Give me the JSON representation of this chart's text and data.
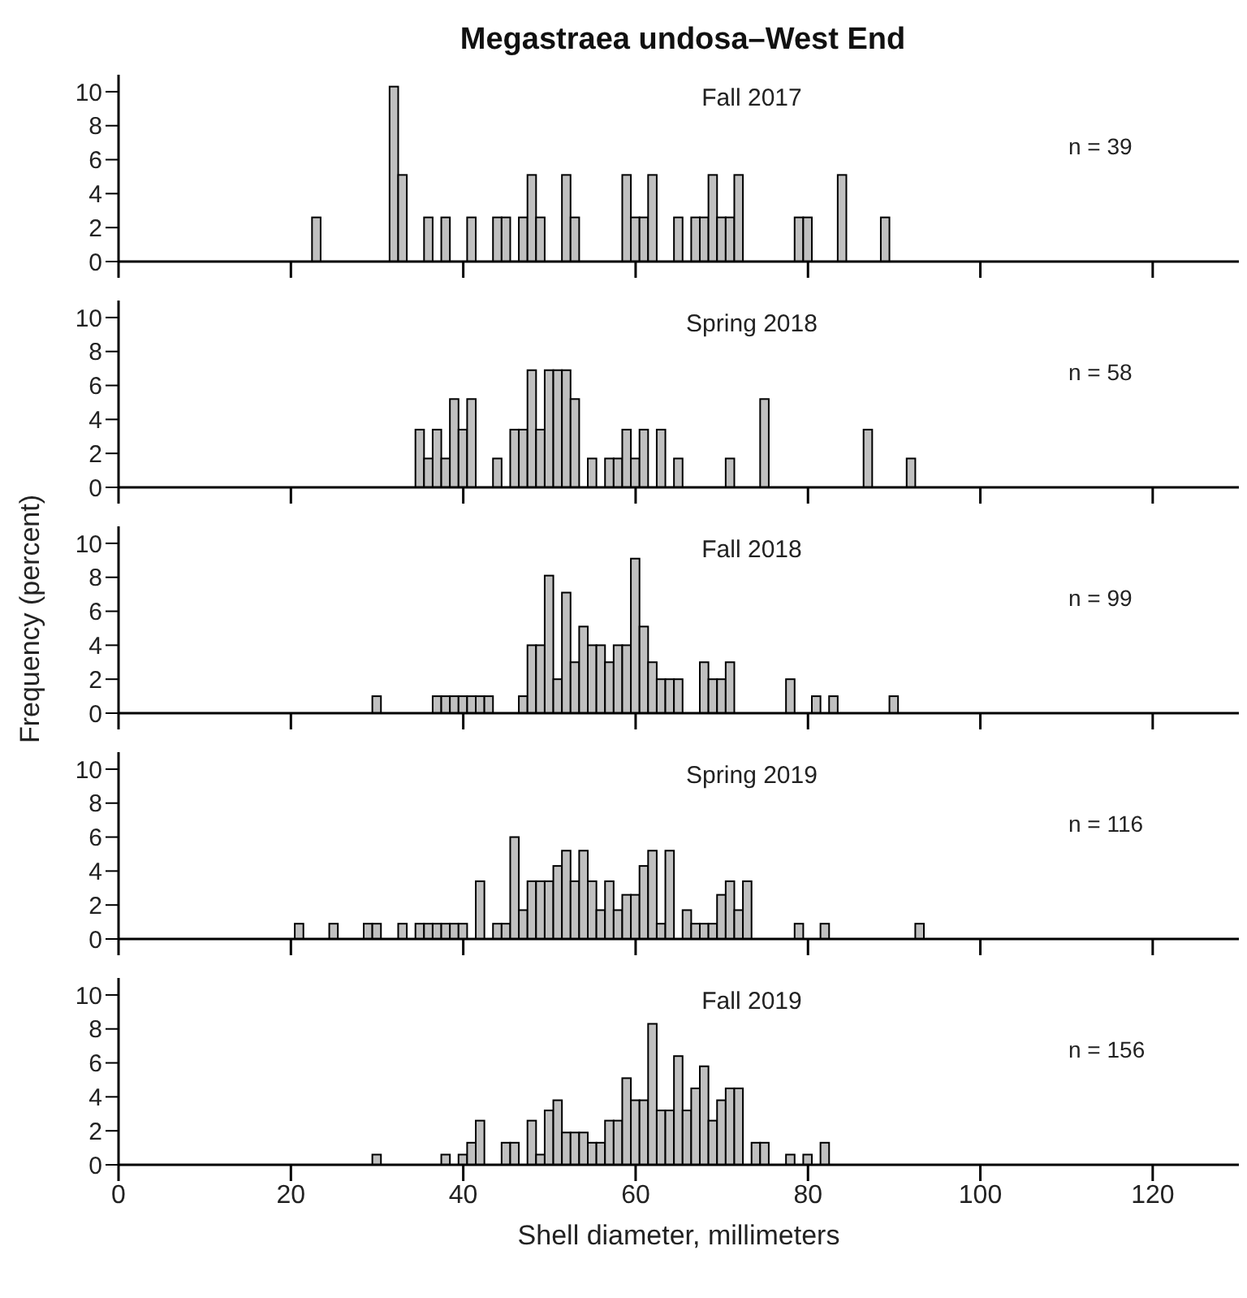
{
  "chart_data": [
    {
      "type": "histogram",
      "title": "Megastraea undosa–West End",
      "annotations": [
        "Fall 2017",
        "n = 39"
      ],
      "color": "#c0c0c0",
      "xlim": [
        0,
        130
      ],
      "xticks": [
        0,
        20,
        40,
        60,
        80,
        100,
        120
      ],
      "ylim": [
        0,
        11
      ],
      "yticks": [
        0,
        2,
        4,
        6,
        8,
        10
      ],
      "tick_labels": "y",
      "bins": [
        20.5,
        21.5,
        22.5,
        23.5,
        24.5,
        25.5,
        26.5,
        27.5,
        28.5,
        29.5,
        30.5,
        31.5,
        32.5,
        33.5,
        34.5,
        35.5,
        36.5,
        37.5,
        38.5,
        39.5,
        40.5,
        41.5,
        42.5,
        43.5,
        44.5,
        45.5,
        46.5,
        47.5,
        48.5,
        49.5,
        50.5,
        51.5,
        52.5,
        53.5,
        54.5,
        55.5,
        56.5,
        57.5,
        58.5,
        59.5,
        60.5,
        61.5,
        62.5,
        63.5,
        64.5,
        65.5,
        66.5,
        67.5,
        68.5,
        69.5,
        70.5,
        71.5,
        72.5,
        73.5,
        74.5,
        75.5,
        76.5,
        77.5,
        78.5,
        79.5,
        80.5,
        81.5,
        82.5,
        83.5,
        84.5,
        85.5,
        86.5,
        87.5,
        88.5,
        89.5,
        90.5,
        91.5,
        92.5,
        93.5
      ],
      "values": [
        0,
        0,
        2.6,
        0,
        0,
        0,
        0,
        0,
        0,
        0,
        0,
        10.3,
        5.1,
        0,
        0,
        2.6,
        0,
        2.6,
        0,
        0,
        2.6,
        0,
        0,
        2.6,
        2.6,
        0,
        2.6,
        5.1,
        2.6,
        0,
        0,
        5.1,
        2.6,
        0,
        0,
        0,
        0,
        0,
        5.1,
        2.6,
        2.6,
        5.1,
        0,
        0,
        2.6,
        0,
        2.6,
        2.6,
        5.1,
        2.6,
        2.6,
        5.1,
        0,
        0,
        0,
        0,
        0,
        0,
        2.6,
        2.6,
        0,
        0,
        0,
        5.1,
        0,
        0,
        0,
        0,
        2.6,
        0,
        0,
        0,
        0
      ]
    },
    {
      "type": "histogram",
      "annotations": [
        "Spring 2018",
        "n = 58"
      ],
      "color": "#c0c0c0",
      "xlim": [
        0,
        130
      ],
      "xticks": [
        0,
        20,
        40,
        60,
        80,
        100,
        120
      ],
      "ylim": [
        0,
        11
      ],
      "yticks": [
        0,
        2,
        4,
        6,
        8,
        10
      ],
      "tick_labels": "y",
      "bins": [
        20.5,
        21.5,
        22.5,
        23.5,
        24.5,
        25.5,
        26.5,
        27.5,
        28.5,
        29.5,
        30.5,
        31.5,
        32.5,
        33.5,
        34.5,
        35.5,
        36.5,
        37.5,
        38.5,
        39.5,
        40.5,
        41.5,
        42.5,
        43.5,
        44.5,
        45.5,
        46.5,
        47.5,
        48.5,
        49.5,
        50.5,
        51.5,
        52.5,
        53.5,
        54.5,
        55.5,
        56.5,
        57.5,
        58.5,
        59.5,
        60.5,
        61.5,
        62.5,
        63.5,
        64.5,
        65.5,
        66.5,
        67.5,
        68.5,
        69.5,
        70.5,
        71.5,
        72.5,
        73.5,
        74.5,
        75.5,
        76.5,
        77.5,
        78.5,
        79.5,
        80.5,
        81.5,
        82.5,
        83.5,
        84.5,
        85.5,
        86.5,
        87.5,
        88.5,
        89.5,
        90.5,
        91.5,
        92.5,
        93.5
      ],
      "values": [
        0,
        0,
        0,
        0,
        0,
        0,
        0,
        0,
        0,
        0,
        0,
        0,
        0,
        0,
        3.4,
        1.7,
        3.4,
        1.7,
        5.2,
        3.4,
        5.2,
        0,
        0,
        1.7,
        0,
        3.4,
        3.4,
        6.9,
        3.4,
        6.9,
        6.9,
        6.9,
        5.2,
        0,
        1.7,
        0,
        1.7,
        1.7,
        3.4,
        1.7,
        3.4,
        0,
        3.4,
        0,
        1.7,
        0,
        0,
        0,
        0,
        0,
        1.7,
        0,
        0,
        0,
        5.2,
        0,
        0,
        0,
        0,
        0,
        0,
        0,
        0,
        0,
        0,
        0,
        3.4,
        0,
        0,
        0,
        0,
        1.7,
        0
      ]
    },
    {
      "type": "histogram",
      "annotations": [
        "Fall 2018",
        "n = 99"
      ],
      "ylabel": "Frequency (percent)",
      "color": "#c0c0c0",
      "xlim": [
        0,
        130
      ],
      "xticks": [
        0,
        20,
        40,
        60,
        80,
        100,
        120
      ],
      "ylim": [
        0,
        11
      ],
      "yticks": [
        0,
        2,
        4,
        6,
        8,
        10
      ],
      "tick_labels": "y",
      "bins": [
        20.5,
        21.5,
        22.5,
        23.5,
        24.5,
        25.5,
        26.5,
        27.5,
        28.5,
        29.5,
        30.5,
        31.5,
        32.5,
        33.5,
        34.5,
        35.5,
        36.5,
        37.5,
        38.5,
        39.5,
        40.5,
        41.5,
        42.5,
        43.5,
        44.5,
        45.5,
        46.5,
        47.5,
        48.5,
        49.5,
        50.5,
        51.5,
        52.5,
        53.5,
        54.5,
        55.5,
        56.5,
        57.5,
        58.5,
        59.5,
        60.5,
        61.5,
        62.5,
        63.5,
        64.5,
        65.5,
        66.5,
        67.5,
        68.5,
        69.5,
        70.5,
        71.5,
        72.5,
        73.5,
        74.5,
        75.5,
        76.5,
        77.5,
        78.5,
        79.5,
        80.5,
        81.5,
        82.5,
        83.5,
        84.5,
        85.5,
        86.5,
        87.5,
        88.5,
        89.5,
        90.5,
        91.5,
        92.5,
        93.5
      ],
      "values": [
        0,
        0,
        0,
        0,
        0,
        0,
        0,
        0,
        0,
        1.0,
        0,
        0,
        0,
        0,
        0,
        0,
        1.0,
        1.0,
        1.0,
        1.0,
        1.0,
        1.0,
        1.0,
        0,
        0,
        0,
        1.0,
        4.0,
        4.0,
        8.1,
        2.0,
        7.1,
        3.0,
        5.1,
        4.0,
        4.0,
        3.0,
        4.0,
        4.0,
        9.1,
        5.1,
        3.0,
        2.0,
        2.0,
        2.0,
        0,
        0,
        3.0,
        2.0,
        2.0,
        3.0,
        0,
        0,
        0,
        0,
        0,
        0,
        2.0,
        0,
        0,
        1.0,
        0,
        1.0,
        0,
        0,
        0,
        0,
        0,
        0,
        1.0,
        0,
        0,
        0
      ]
    },
    {
      "type": "histogram",
      "annotations": [
        "Spring 2019",
        "n = 116"
      ],
      "color": "#c0c0c0",
      "xlim": [
        0,
        130
      ],
      "xticks": [
        0,
        20,
        40,
        60,
        80,
        100,
        120
      ],
      "ylim": [
        0,
        11
      ],
      "yticks": [
        0,
        2,
        4,
        6,
        8,
        10
      ],
      "tick_labels": "y",
      "bins": [
        20.5,
        21.5,
        22.5,
        23.5,
        24.5,
        25.5,
        26.5,
        27.5,
        28.5,
        29.5,
        30.5,
        31.5,
        32.5,
        33.5,
        34.5,
        35.5,
        36.5,
        37.5,
        38.5,
        39.5,
        40.5,
        41.5,
        42.5,
        43.5,
        44.5,
        45.5,
        46.5,
        47.5,
        48.5,
        49.5,
        50.5,
        51.5,
        52.5,
        53.5,
        54.5,
        55.5,
        56.5,
        57.5,
        58.5,
        59.5,
        60.5,
        61.5,
        62.5,
        63.5,
        64.5,
        65.5,
        66.5,
        67.5,
        68.5,
        69.5,
        70.5,
        71.5,
        72.5,
        73.5,
        74.5,
        75.5,
        76.5,
        77.5,
        78.5,
        79.5,
        80.5,
        81.5,
        82.5,
        83.5,
        84.5,
        85.5,
        86.5,
        87.5,
        88.5,
        89.5,
        90.5,
        91.5,
        92.5,
        93.5
      ],
      "values": [
        0.9,
        0,
        0,
        0,
        0.9,
        0,
        0,
        0,
        0.9,
        0.9,
        0,
        0,
        0.9,
        0,
        0.9,
        0.9,
        0.9,
        0.9,
        0.9,
        0.9,
        0,
        3.4,
        0,
        0.9,
        0.9,
        6.0,
        1.7,
        3.4,
        3.4,
        3.4,
        4.3,
        5.2,
        3.4,
        5.2,
        3.4,
        1.7,
        3.4,
        1.7,
        2.6,
        2.6,
        4.3,
        5.2,
        0.9,
        5.2,
        0,
        1.7,
        0.9,
        0.9,
        0.9,
        2.6,
        3.4,
        1.7,
        3.4,
        0,
        0,
        0,
        0,
        0,
        0.9,
        0,
        0,
        0.9,
        0,
        0,
        0,
        0,
        0,
        0,
        0,
        0,
        0,
        0,
        0.9
      ]
    },
    {
      "type": "histogram",
      "annotations": [
        "Fall 2019",
        "n = 156"
      ],
      "xlabel": "Shell diameter, millimeters",
      "color": "#c0c0c0",
      "xlim": [
        0,
        130
      ],
      "xticks": [
        0,
        20,
        40,
        60,
        80,
        100,
        120
      ],
      "ylim": [
        0,
        11
      ],
      "yticks": [
        0,
        2,
        4,
        6,
        8,
        10
      ],
      "bins": [
        20.5,
        21.5,
        22.5,
        23.5,
        24.5,
        25.5,
        26.5,
        27.5,
        28.5,
        29.5,
        30.5,
        31.5,
        32.5,
        33.5,
        34.5,
        35.5,
        36.5,
        37.5,
        38.5,
        39.5,
        40.5,
        41.5,
        42.5,
        43.5,
        44.5,
        45.5,
        46.5,
        47.5,
        48.5,
        49.5,
        50.5,
        51.5,
        52.5,
        53.5,
        54.5,
        55.5,
        56.5,
        57.5,
        58.5,
        59.5,
        60.5,
        61.5,
        62.5,
        63.5,
        64.5,
        65.5,
        66.5,
        67.5,
        68.5,
        69.5,
        70.5,
        71.5,
        72.5,
        73.5,
        74.5,
        75.5,
        76.5,
        77.5,
        78.5,
        79.5,
        80.5,
        81.5,
        82.5,
        83.5,
        84.5,
        85.5,
        86.5,
        87.5,
        88.5,
        89.5,
        90.5,
        91.5,
        92.5,
        93.5
      ],
      "values": [
        0,
        0,
        0,
        0,
        0,
        0,
        0,
        0,
        0,
        0.6,
        0,
        0,
        0,
        0,
        0,
        0,
        0,
        0.6,
        0,
        0.6,
        1.3,
        2.6,
        0,
        0,
        1.3,
        1.3,
        0,
        2.6,
        0.6,
        3.2,
        3.8,
        1.9,
        1.9,
        1.9,
        1.3,
        1.3,
        2.6,
        2.6,
        5.1,
        3.8,
        3.8,
        8.3,
        3.2,
        3.2,
        6.4,
        3.2,
        4.5,
        5.8,
        2.6,
        3.8,
        4.5,
        4.5,
        0,
        1.3,
        1.3,
        0,
        0,
        0.6,
        0,
        0.6,
        0,
        1.3,
        0,
        0,
        0,
        0,
        0,
        0,
        0,
        0,
        0,
        0,
        0
      ]
    }
  ]
}
